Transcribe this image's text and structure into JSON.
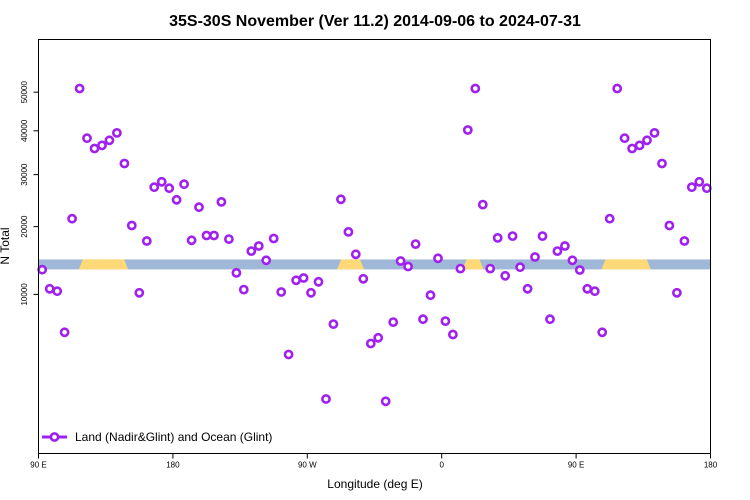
{
  "chart_data": {
    "type": "scatter",
    "title": "35S-30S November (Ver 11.2)   2014-09-06 to 2024-07-31",
    "xlabel": "Longitude (deg E)",
    "ylabel": "N Total",
    "x_tick_labels": [
      "90 E",
      "180",
      "90 W",
      "0",
      "90 E",
      "180"
    ],
    "y_tick_labels": [
      "10000",
      "20000",
      "30000",
      "40000",
      "50000"
    ],
    "y_scale": "sqrt",
    "xlim": [
      90,
      540
    ],
    "ylim": [
      0,
      55000
    ],
    "legend_label": "Land (Nadir&Glint) and Ocean (Glint)",
    "legend_position": "bottom-left",
    "series": [
      {
        "color": "#a020f0",
        "marker": "open-circle",
        "points": [
          [
            92.5,
            13250
          ],
          [
            97.5,
            10700
          ],
          [
            102.5,
            10400
          ],
          [
            107.5,
            5900
          ],
          [
            112.5,
            21400
          ],
          [
            117.5,
            51000
          ],
          [
            122.5,
            38200
          ],
          [
            127.5,
            35800
          ],
          [
            132.5,
            36500
          ],
          [
            137.5,
            37700
          ],
          [
            142.5,
            39500
          ],
          [
            147.5,
            32400
          ],
          [
            152.5,
            20200
          ],
          [
            157.5,
            10200
          ],
          [
            162.5,
            17600
          ],
          [
            167.5,
            27400
          ],
          [
            172.5,
            28500
          ],
          [
            177.5,
            27200
          ],
          [
            182.5,
            24900
          ],
          [
            187.5,
            28000
          ],
          [
            192.5,
            17700
          ],
          [
            197.5,
            23500
          ],
          [
            202.5,
            18500
          ],
          [
            207.5,
            18500
          ],
          [
            212.5,
            24500
          ],
          [
            217.5,
            17900
          ],
          [
            222.5,
            12800
          ],
          [
            227.5,
            10600
          ],
          [
            232.5,
            16000
          ],
          [
            237.5,
            16800
          ],
          [
            242.5,
            14600
          ],
          [
            247.5,
            18000
          ],
          [
            252.5,
            10300
          ],
          [
            257.5,
            4000
          ],
          [
            262.5,
            11800
          ],
          [
            267.5,
            12100
          ],
          [
            272.5,
            10200
          ],
          [
            277.5,
            11600
          ],
          [
            282.5,
            1300
          ],
          [
            287.5,
            6700
          ],
          [
            292.5,
            25000
          ],
          [
            297.5,
            19100
          ],
          [
            302.5,
            15500
          ],
          [
            307.5,
            12000
          ],
          [
            312.5,
            4900
          ],
          [
            317.5,
            5400
          ],
          [
            322.5,
            1200
          ],
          [
            327.5,
            6900
          ],
          [
            332.5,
            14500
          ],
          [
            337.5,
            13700
          ],
          [
            342.5,
            17100
          ],
          [
            347.5,
            7200
          ],
          [
            352.5,
            9900
          ],
          [
            357.5,
            14900
          ],
          [
            362.5,
            7000
          ],
          [
            367.5,
            5700
          ],
          [
            372.5,
            13400
          ],
          [
            377.5,
            40200
          ],
          [
            382.5,
            51000
          ],
          [
            387.5,
            24000
          ],
          [
            392.5,
            13400
          ],
          [
            397.5,
            18100
          ],
          [
            402.5,
            12400
          ],
          [
            407.5,
            18400
          ],
          [
            412.5,
            13600
          ],
          [
            417.5,
            10700
          ],
          [
            422.5,
            15100
          ],
          [
            427.5,
            18400
          ],
          [
            432.5,
            7200
          ],
          [
            437.5,
            16000
          ],
          [
            442.5,
            16800
          ],
          [
            447.5,
            14600
          ],
          [
            452.5,
            13200
          ],
          [
            457.5,
            10700
          ],
          [
            462.5,
            10400
          ],
          [
            467.5,
            5900
          ],
          [
            472.5,
            21400
          ],
          [
            477.5,
            51000
          ],
          [
            482.5,
            38200
          ],
          [
            487.5,
            35800
          ],
          [
            492.5,
            36500
          ],
          [
            497.5,
            37700
          ],
          [
            502.5,
            39500
          ],
          [
            507.5,
            32400
          ],
          [
            512.5,
            20200
          ],
          [
            517.5,
            10200
          ],
          [
            522.5,
            17600
          ],
          [
            527.5,
            27400
          ],
          [
            532.5,
            28500
          ],
          [
            537.5,
            27200
          ]
        ]
      }
    ],
    "land_ocean_bar": {
      "level": 14000,
      "ocean_color": "#a0b8d8",
      "land_color": "#ffd978",
      "land_ranges": [
        [
          117,
          150
        ],
        [
          290,
          308
        ],
        [
          374,
          388
        ],
        [
          467,
          500
        ]
      ]
    }
  }
}
